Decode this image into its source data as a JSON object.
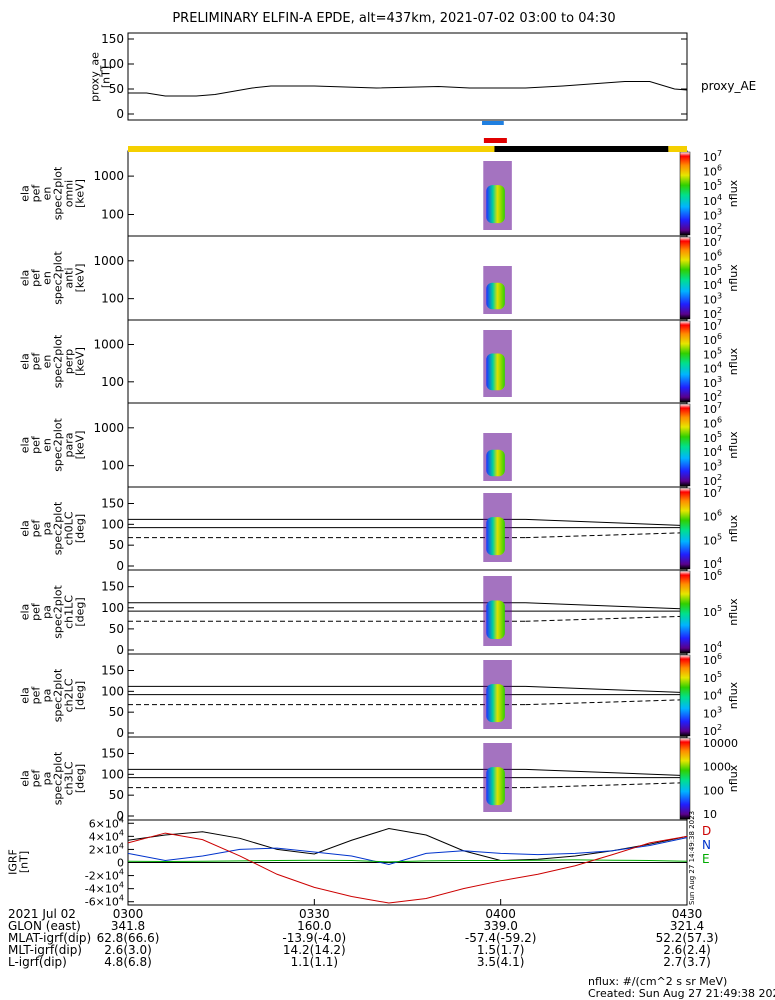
{
  "title": "PRELIMINARY ELFIN-A EPDE, alt=437km, 2021-07-02 03:00 to 04:30",
  "chart_data": [
    {
      "type": "line",
      "panel": "proxy_ae",
      "ylabel_lines": [
        "proxy_ae",
        "[nT]"
      ],
      "legend": "proxy_AE",
      "yticks": [
        "0",
        "50",
        "100",
        "150"
      ],
      "ylim": [
        0,
        150
      ],
      "x_minutes": [
        0,
        3,
        6,
        11,
        14,
        20,
        23,
        30,
        40,
        50,
        55,
        60,
        64,
        70,
        80,
        84,
        88,
        90
      ],
      "values": [
        42,
        42,
        36,
        36,
        39,
        52,
        56,
        56,
        52,
        55,
        52,
        52,
        52,
        56,
        65,
        65,
        50,
        48
      ]
    },
    {
      "type": "heatmap",
      "panel": "en omni",
      "ylabel_lines": [
        "ela",
        "pef",
        "en",
        "spec2plot",
        "omni",
        "[keV]"
      ],
      "yticks": [
        "100",
        "1000"
      ],
      "scale": "log",
      "colorbar": {
        "label": "nflux",
        "ticks": [
          "10^2",
          "10^3",
          "10^4",
          "10^5",
          "10^6",
          "10^7"
        ]
      }
    },
    {
      "type": "heatmap",
      "panel": "en anti",
      "ylabel_lines": [
        "ela",
        "pef",
        "en",
        "spec2plot",
        "anti",
        "[keV]"
      ],
      "yticks": [
        "100",
        "1000"
      ],
      "scale": "log",
      "colorbar": {
        "label": "nflux",
        "ticks": [
          "10^2",
          "10^3",
          "10^4",
          "10^5",
          "10^6",
          "10^7"
        ]
      }
    },
    {
      "type": "heatmap",
      "panel": "en perp",
      "ylabel_lines": [
        "ela",
        "pef",
        "en",
        "spec2plot",
        "perp",
        "[keV]"
      ],
      "yticks": [
        "100",
        "1000"
      ],
      "scale": "log",
      "colorbar": {
        "label": "nflux",
        "ticks": [
          "10^2",
          "10^3",
          "10^4",
          "10^5",
          "10^6",
          "10^7"
        ]
      }
    },
    {
      "type": "heatmap",
      "panel": "en para",
      "ylabel_lines": [
        "ela",
        "pef",
        "en",
        "spec2plot",
        "para",
        "[keV]"
      ],
      "yticks": [
        "100",
        "1000"
      ],
      "scale": "log",
      "colorbar": {
        "label": "nflux",
        "ticks": [
          "10^2",
          "10^3",
          "10^4",
          "10^5",
          "10^6",
          "10^7"
        ]
      }
    },
    {
      "type": "heatmap",
      "panel": "pa ch0LC",
      "ylabel_lines": [
        "ela",
        "pef",
        "pa",
        "spec2plot",
        "ch0LC",
        "[deg]"
      ],
      "yticks": [
        "0",
        "50",
        "100",
        "150"
      ],
      "ylim": [
        0,
        180
      ],
      "colorbar": {
        "label": "nflux",
        "ticks": [
          "10^4",
          "10^5",
          "10^6",
          "10^7"
        ]
      }
    },
    {
      "type": "heatmap",
      "panel": "pa ch1LC",
      "ylabel_lines": [
        "ela",
        "pef",
        "pa",
        "spec2plot",
        "ch1LC",
        "[deg]"
      ],
      "yticks": [
        "0",
        "50",
        "100",
        "150"
      ],
      "ylim": [
        0,
        180
      ],
      "colorbar": {
        "label": "nflux",
        "ticks": [
          "10^4",
          "10^5",
          "10^6"
        ]
      }
    },
    {
      "type": "heatmap",
      "panel": "pa ch2LC",
      "ylabel_lines": [
        "ela",
        "pef",
        "pa",
        "spec2plot",
        "ch2LC",
        "[deg]"
      ],
      "yticks": [
        "0",
        "50",
        "100",
        "150"
      ],
      "ylim": [
        0,
        180
      ],
      "colorbar": {
        "label": "nflux",
        "ticks": [
          "10^2",
          "10^3",
          "10^4",
          "10^5",
          "10^6"
        ]
      }
    },
    {
      "type": "heatmap",
      "panel": "pa ch3LC",
      "ylabel_lines": [
        "ela",
        "pef",
        "pa",
        "spec2plot",
        "ch3LC",
        "[deg]"
      ],
      "yticks": [
        "0",
        "50",
        "100",
        "150"
      ],
      "ylim": [
        0,
        180
      ],
      "colorbar": {
        "label": "nflux",
        "ticks": [
          "10",
          "100",
          "1000",
          "10000"
        ]
      }
    },
    {
      "type": "line",
      "panel": "IGRF",
      "ylabel_lines": [
        "IGRF",
        "[nT]"
      ],
      "yticks": [
        "-6×10^4",
        "-4×10^4",
        "-2×10^4",
        "0",
        "2×10^4",
        "4×10^4",
        "6×10^4"
      ],
      "ylim": [
        -65000,
        65000
      ],
      "legend": [
        "D",
        "N",
        "E"
      ],
      "x_minutes": [
        0,
        6,
        12,
        18,
        24,
        30,
        36,
        42,
        48,
        54,
        60,
        66,
        72,
        78,
        84,
        90
      ],
      "series": [
        {
          "name": "D",
          "color": "#000000",
          "values": [
            34000,
            42000,
            47000,
            37000,
            20000,
            13000,
            34000,
            52000,
            42000,
            18000,
            3000,
            5000,
            10000,
            18000,
            28000,
            40000
          ]
        },
        {
          "name": "N",
          "color": "#0033cc",
          "values": [
            14000,
            3000,
            10000,
            20000,
            22000,
            16000,
            10000,
            -3000,
            14000,
            18000,
            14000,
            12000,
            14000,
            18000,
            26000,
            38000
          ]
        },
        {
          "name": "E",
          "color": "#00aa00",
          "values": [
            2000,
            1500,
            2000,
            2500,
            3000,
            3500,
            3000,
            1000,
            2500,
            3000,
            3000,
            3500,
            4000,
            3500,
            3000,
            2000
          ]
        },
        {
          "name": "D",
          "color": "#cc0000",
          "values": [
            30000,
            45000,
            35000,
            10000,
            -18000,
            -38000,
            -52000,
            -62000,
            -55000,
            -40000,
            -28000,
            -18000,
            -5000,
            12000,
            30000,
            40000
          ]
        }
      ]
    }
  ],
  "colorbar_label": "nflux",
  "x_axis": {
    "row_labels": [
      "2021 Jul 02",
      "GLON (east)",
      "MLAT-igrf(dip)",
      "MLT-igrf(dip)",
      "L-igrf(dip)"
    ],
    "ticks": [
      {
        "minute": 0,
        "time": "0300",
        "glon": "341.8",
        "mlat": "62.8(66.6)",
        "mlt": "2.6(3.0)",
        "l": "4.8(6.8)"
      },
      {
        "minute": 30,
        "time": "0330",
        "glon": "160.0",
        "mlat": "-13.9(-4.0)",
        "mlt": "14.2(14.2)",
        "l": "1.1(1.1)"
      },
      {
        "minute": 60,
        "time": "0400",
        "glon": "339.0",
        "mlat": "-57.4(-59.2)",
        "mlt": "1.5(1.7)",
        "l": "3.5(4.1)"
      },
      {
        "minute": 90,
        "time": "0430",
        "glon": "321.4",
        "mlat": "52.2(57.3)",
        "mlt": "2.6(2.4)",
        "l": "2.7(3.7)"
      }
    ]
  },
  "units_note": "nflux: #/(cm^2 s sr MeV)",
  "created": "Created: Sun Aug 27 21:49:38 2023",
  "side_stamp": "Sun Aug 27 14:49:38 2023",
  "colors": {
    "sunlit": "#f5d000",
    "shadow": "#000000",
    "fgm": "#1f7fe0",
    "epd": "#e00000"
  }
}
